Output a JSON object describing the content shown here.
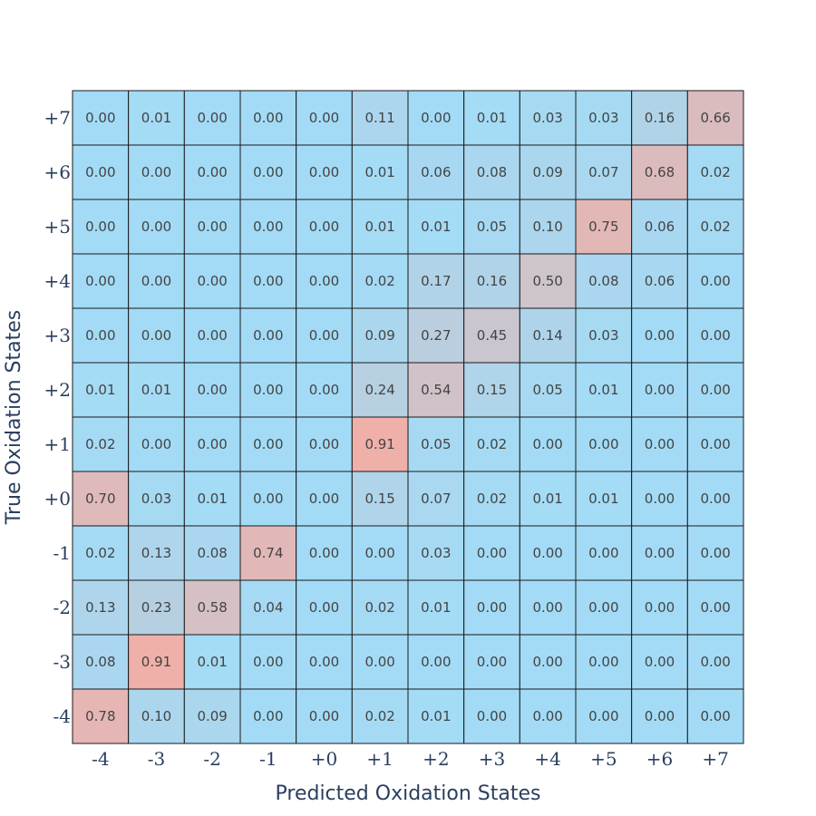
{
  "chart_data": {
    "type": "heatmap",
    "xlabel": "Predicted Oxidation States",
    "ylabel": "True Oxidation States",
    "x_categories": [
      "-4",
      "-3",
      "-2",
      "-1",
      "+0",
      "+1",
      "+2",
      "+3",
      "+4",
      "+5",
      "+6",
      "+7"
    ],
    "y_categories": [
      "-4",
      "-3",
      "-2",
      "-1",
      "+0",
      "+1",
      "+2",
      "+3",
      "+4",
      "+5",
      "+6",
      "+7"
    ],
    "value_range": [
      0,
      1
    ],
    "colors": {
      "low": "#a3dbf6",
      "high": "#f7aca1",
      "border": "#1a1a1a"
    },
    "values": [
      [
        0.78,
        0.1,
        0.09,
        0.0,
        0.0,
        0.02,
        0.01,
        0.0,
        0.0,
        0.0,
        0.0,
        0.0
      ],
      [
        0.08,
        0.91,
        0.01,
        0.0,
        0.0,
        0.0,
        0.0,
        0.0,
        0.0,
        0.0,
        0.0,
        0.0
      ],
      [
        0.13,
        0.23,
        0.58,
        0.04,
        0.0,
        0.02,
        0.01,
        0.0,
        0.0,
        0.0,
        0.0,
        0.0
      ],
      [
        0.02,
        0.13,
        0.08,
        0.74,
        0.0,
        0.0,
        0.03,
        0.0,
        0.0,
        0.0,
        0.0,
        0.0
      ],
      [
        0.7,
        0.03,
        0.01,
        0.0,
        0.0,
        0.15,
        0.07,
        0.02,
        0.01,
        0.01,
        0.0,
        0.0
      ],
      [
        0.02,
        0.0,
        0.0,
        0.0,
        0.0,
        0.91,
        0.05,
        0.02,
        0.0,
        0.0,
        0.0,
        0.0
      ],
      [
        0.01,
        0.01,
        0.0,
        0.0,
        0.0,
        0.24,
        0.54,
        0.15,
        0.05,
        0.01,
        0.0,
        0.0
      ],
      [
        0.0,
        0.0,
        0.0,
        0.0,
        0.0,
        0.09,
        0.27,
        0.45,
        0.14,
        0.03,
        0.0,
        0.0
      ],
      [
        0.0,
        0.0,
        0.0,
        0.0,
        0.0,
        0.02,
        0.17,
        0.16,
        0.5,
        0.08,
        0.06,
        0.0
      ],
      [
        0.0,
        0.0,
        0.0,
        0.0,
        0.0,
        0.01,
        0.01,
        0.05,
        0.1,
        0.75,
        0.06,
        0.02
      ],
      [
        0.0,
        0.0,
        0.0,
        0.0,
        0.0,
        0.01,
        0.06,
        0.08,
        0.09,
        0.07,
        0.68,
        0.02
      ],
      [
        0.0,
        0.01,
        0.0,
        0.0,
        0.0,
        0.11,
        0.0,
        0.01,
        0.03,
        0.03,
        0.16,
        0.66
      ]
    ]
  }
}
